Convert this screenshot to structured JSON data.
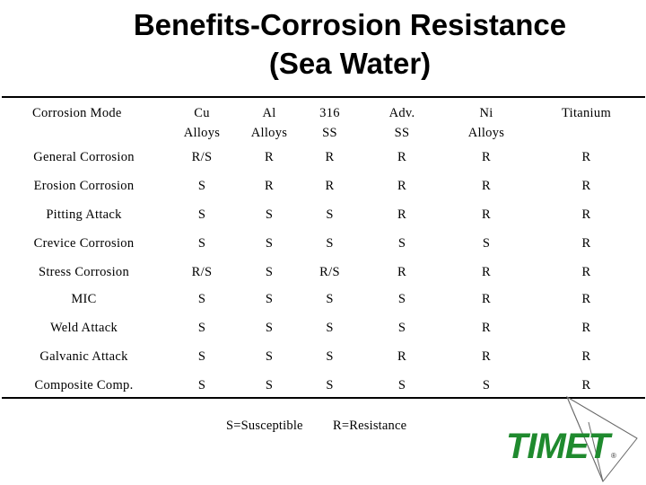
{
  "title": {
    "line1": "Benefits-Corrosion Resistance",
    "line2": "(Sea Water)"
  },
  "table": {
    "headers": [
      [
        "Corrosion Mode",
        ""
      ],
      [
        "Cu",
        "Alloys"
      ],
      [
        "Al",
        "Alloys"
      ],
      [
        "316",
        "SS"
      ],
      [
        "Adv.",
        "SS"
      ],
      [
        "Ni",
        "Alloys"
      ],
      [
        "Titanium",
        ""
      ]
    ],
    "rows": [
      [
        "General Corrosion",
        "R/S",
        "R",
        "R",
        "R",
        "R",
        "R"
      ],
      [
        "Erosion Corrosion",
        "S",
        "R",
        "R",
        "R",
        "R",
        "R"
      ],
      [
        "Pitting Attack",
        "S",
        "S",
        "S",
        "R",
        "R",
        "R"
      ],
      [
        "Crevice Corrosion",
        "S",
        "S",
        "S",
        "S",
        "S",
        "R"
      ],
      [
        "Stress Corrosion",
        "R/S",
        "S",
        "R/S",
        "R",
        "R",
        "R"
      ],
      [
        "MIC",
        "S",
        "S",
        "S",
        "S",
        "R",
        "R"
      ],
      [
        "Weld Attack",
        "S",
        "S",
        "S",
        "S",
        "R",
        "R"
      ],
      [
        "Galvanic Attack",
        "S",
        "S",
        "S",
        "R",
        "R",
        "R"
      ],
      [
        "Composite Comp.",
        "S",
        "S",
        "S",
        "S",
        "S",
        "R"
      ]
    ]
  },
  "legend": {
    "susceptible": "S=Susceptible",
    "resistance": "R=Resistance"
  },
  "logo": {
    "text": "TIMET",
    "mark": "®",
    "color": "#1f8a2e"
  }
}
